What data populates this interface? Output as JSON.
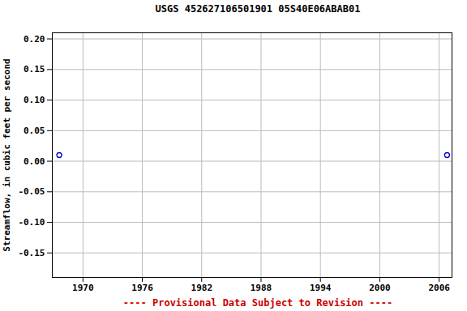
{
  "chart_data": {
    "type": "scatter",
    "title": "USGS 452627106501901 05S40E06ABAB01",
    "caption": "---- Provisional Data Subject to Revision ----",
    "y_label": "Streamflow, in cubic feet per second",
    "x": [
      1967.6,
      2006.8
    ],
    "values": [
      0.01,
      0.01
    ],
    "color": "#0000cc",
    "marker": "circle",
    "xlim": [
      1966.9,
      2007.3
    ],
    "xticks": [
      1970,
      1976,
      1982,
      1988,
      1994,
      2000,
      2006
    ],
    "ylim": [
      -0.19,
      0.21
    ],
    "yticks": [
      {
        "value": -0.15,
        "label": "-0.15"
      },
      {
        "value": -0.1,
        "label": "-0.10"
      },
      {
        "value": -0.05,
        "label": "-0.05"
      },
      {
        "value": 0,
        "label": "0.00"
      },
      {
        "value": 0.05,
        "label": "0.05"
      },
      {
        "value": 0.1,
        "label": "0.10"
      },
      {
        "value": 0.15,
        "label": "0.15"
      },
      {
        "value": 0.2,
        "label": "0.20"
      }
    ],
    "grid": true
  }
}
